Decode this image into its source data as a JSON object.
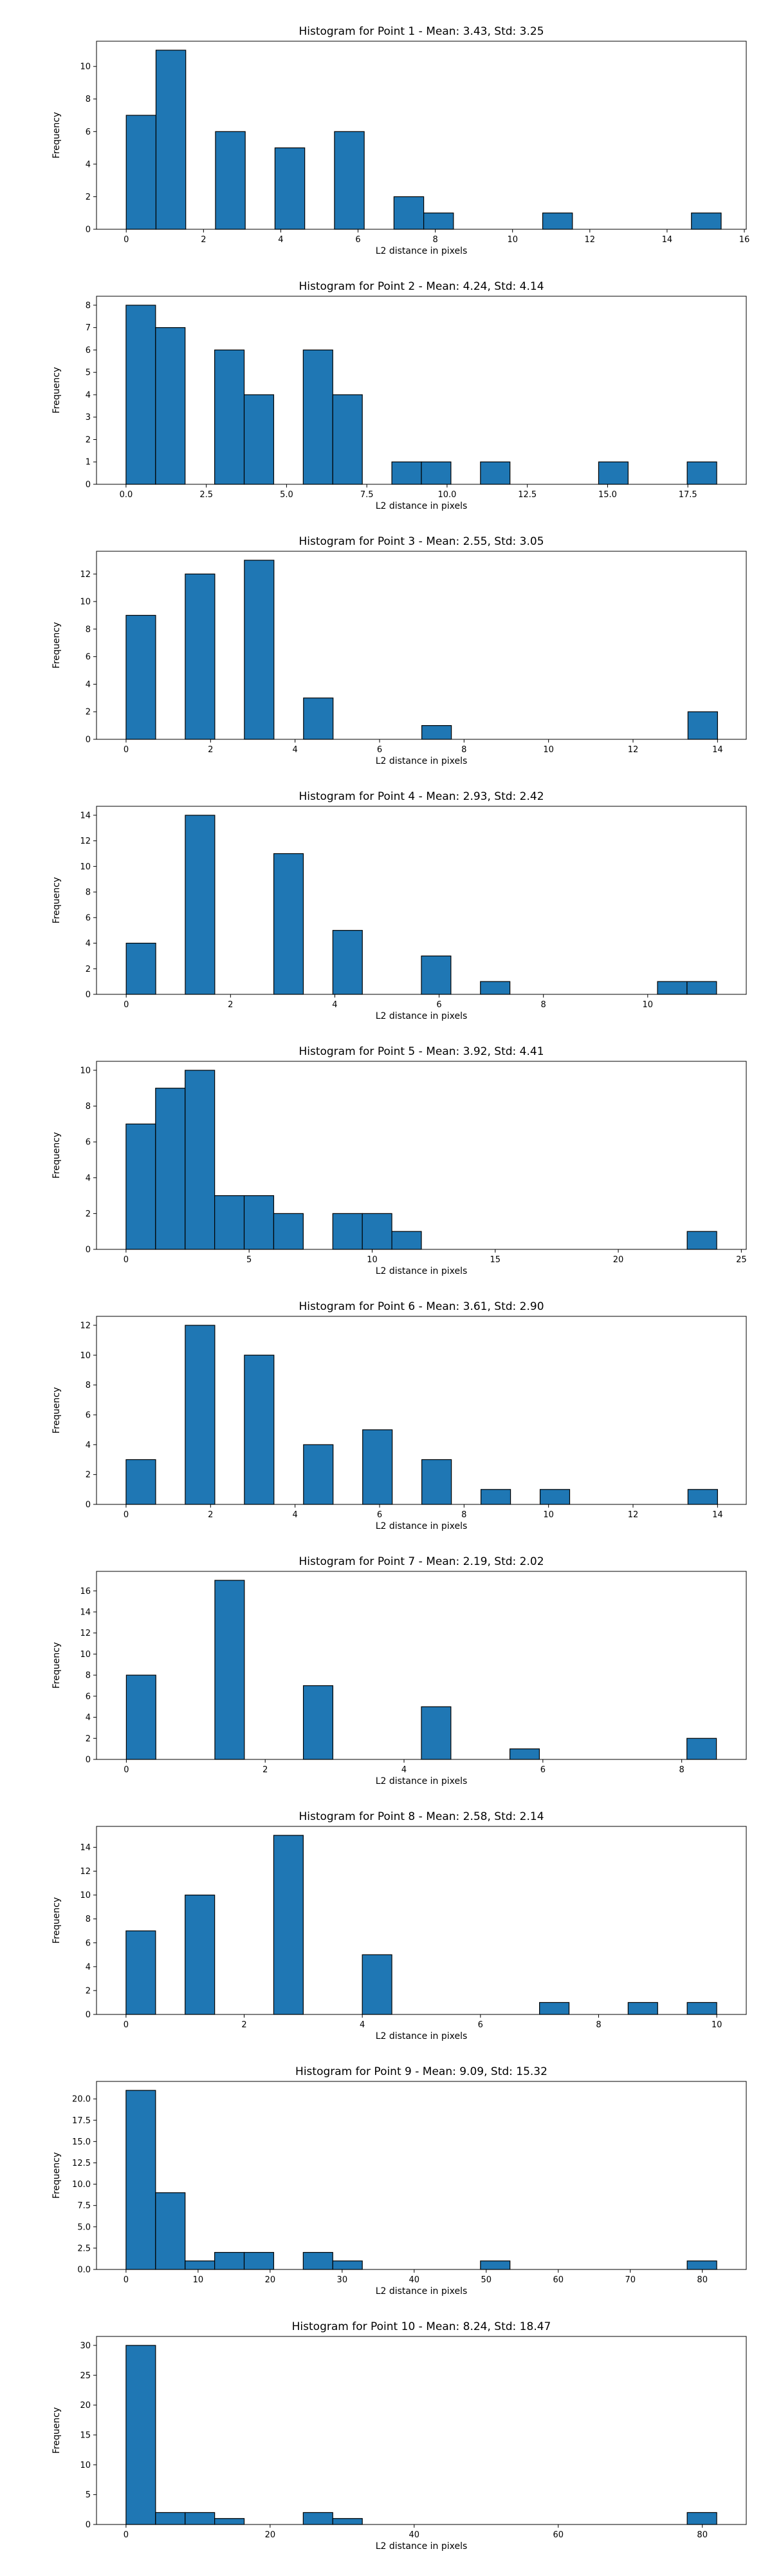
{
  "chart_data": [
    {
      "type": "bar",
      "title": "Histogram for Point 1 - Mean: 3.43, Std: 3.25",
      "xlabel": "L2 distance in pixels",
      "ylabel": "Frequency",
      "xlim": [
        -0.77,
        16.05
      ],
      "ylim": [
        0,
        11.55
      ],
      "xticks": [
        0,
        2,
        4,
        6,
        8,
        10,
        12,
        14,
        16
      ],
      "yticks": [
        0,
        2,
        4,
        6,
        8,
        10
      ],
      "bars": [
        {
          "x0": 0.0,
          "x1": 0.77,
          "y": 7
        },
        {
          "x0": 0.77,
          "x1": 1.54,
          "y": 11
        },
        {
          "x0": 2.31,
          "x1": 3.08,
          "y": 6
        },
        {
          "x0": 3.85,
          "x1": 4.62,
          "y": 5
        },
        {
          "x0": 5.39,
          "x1": 6.16,
          "y": 6
        },
        {
          "x0": 6.93,
          "x1": 7.7,
          "y": 2
        },
        {
          "x0": 7.7,
          "x1": 8.47,
          "y": 1
        },
        {
          "x0": 10.78,
          "x1": 11.55,
          "y": 1
        },
        {
          "x0": 14.63,
          "x1": 15.4,
          "y": 1
        }
      ]
    },
    {
      "type": "bar",
      "title": "Histogram for Point 2 - Mean: 4.24, Std: 4.14",
      "xlabel": "L2 distance in pixels",
      "ylabel": "Frequency",
      "xlim": [
        -0.92,
        19.32
      ],
      "ylim": [
        0,
        8.4
      ],
      "xticks": [
        0.0,
        2.5,
        5.0,
        7.5,
        10.0,
        12.5,
        15.0,
        17.5
      ],
      "xtick_labels": [
        "0.0",
        "2.5",
        "5.0",
        "7.5",
        "10.0",
        "12.5",
        "15.0",
        "17.5"
      ],
      "yticks": [
        0,
        1,
        2,
        3,
        4,
        5,
        6,
        7,
        8
      ],
      "bars": [
        {
          "x0": 0.0,
          "x1": 0.92,
          "y": 8
        },
        {
          "x0": 0.92,
          "x1": 1.84,
          "y": 7
        },
        {
          "x0": 2.76,
          "x1": 3.68,
          "y": 6
        },
        {
          "x0": 3.68,
          "x1": 4.6,
          "y": 4
        },
        {
          "x0": 5.52,
          "x1": 6.44,
          "y": 6
        },
        {
          "x0": 6.44,
          "x1": 7.36,
          "y": 4
        },
        {
          "x0": 8.28,
          "x1": 9.2,
          "y": 1
        },
        {
          "x0": 9.2,
          "x1": 10.12,
          "y": 1
        },
        {
          "x0": 11.04,
          "x1": 11.96,
          "y": 1
        },
        {
          "x0": 14.72,
          "x1": 15.64,
          "y": 1
        },
        {
          "x0": 17.48,
          "x1": 18.4,
          "y": 1
        }
      ]
    },
    {
      "type": "bar",
      "title": "Histogram for Point 3 - Mean: 2.55, Std: 3.05",
      "xlabel": "L2 distance in pixels",
      "ylabel": "Frequency",
      "xlim": [
        -0.7,
        14.68
      ],
      "ylim": [
        0,
        13.65
      ],
      "xticks": [
        0,
        2,
        4,
        6,
        8,
        10,
        12,
        14
      ],
      "yticks": [
        0,
        2,
        4,
        6,
        8,
        10,
        12
      ],
      "bars": [
        {
          "x0": 0.0,
          "x1": 0.7,
          "y": 9
        },
        {
          "x0": 1.4,
          "x1": 2.1,
          "y": 12
        },
        {
          "x0": 2.8,
          "x1": 3.5,
          "y": 13
        },
        {
          "x0": 4.2,
          "x1": 4.9,
          "y": 3
        },
        {
          "x0": 7.0,
          "x1": 7.7,
          "y": 1
        },
        {
          "x0": 13.3,
          "x1": 14.0,
          "y": 2
        }
      ]
    },
    {
      "type": "bar",
      "title": "Histogram for Point 4 - Mean: 2.93, Std: 2.42",
      "xlabel": "L2 distance in pixels",
      "ylabel": "Frequency",
      "xlim": [
        -0.57,
        11.89
      ],
      "ylim": [
        0,
        14.7
      ],
      "xticks": [
        0,
        2,
        4,
        6,
        8,
        10
      ],
      "yticks": [
        0,
        2,
        4,
        6,
        8,
        10,
        12,
        14
      ],
      "bars": [
        {
          "x0": 0.0,
          "x1": 0.566,
          "y": 4
        },
        {
          "x0": 1.132,
          "x1": 1.698,
          "y": 14
        },
        {
          "x0": 2.83,
          "x1": 3.396,
          "y": 11
        },
        {
          "x0": 3.962,
          "x1": 4.528,
          "y": 5
        },
        {
          "x0": 5.66,
          "x1": 6.226,
          "y": 3
        },
        {
          "x0": 6.792,
          "x1": 7.358,
          "y": 1
        },
        {
          "x0": 10.188,
          "x1": 10.754,
          "y": 1
        },
        {
          "x0": 10.754,
          "x1": 11.32,
          "y": 1
        }
      ]
    },
    {
      "type": "bar",
      "title": "Histogram for Point 5 - Mean: 3.92, Std: 4.41",
      "xlabel": "L2 distance in pixels",
      "ylabel": "Frequency",
      "xlim": [
        -1.2,
        25.2
      ],
      "ylim": [
        0,
        10.5
      ],
      "xticks": [
        0,
        5,
        10,
        15,
        20,
        25
      ],
      "yticks": [
        0,
        2,
        4,
        6,
        8,
        10
      ],
      "bars": [
        {
          "x0": 0.0,
          "x1": 1.2,
          "y": 7
        },
        {
          "x0": 1.2,
          "x1": 2.4,
          "y": 9
        },
        {
          "x0": 2.4,
          "x1": 3.6,
          "y": 10
        },
        {
          "x0": 3.6,
          "x1": 4.8,
          "y": 3
        },
        {
          "x0": 4.8,
          "x1": 6.0,
          "y": 3
        },
        {
          "x0": 6.0,
          "x1": 7.2,
          "y": 2
        },
        {
          "x0": 8.4,
          "x1": 9.6,
          "y": 2
        },
        {
          "x0": 9.6,
          "x1": 10.8,
          "y": 2
        },
        {
          "x0": 10.8,
          "x1": 12.0,
          "y": 1
        },
        {
          "x0": 22.8,
          "x1": 24.0,
          "y": 1
        }
      ]
    },
    {
      "type": "bar",
      "title": "Histogram for Point 6 - Mean: 3.61, Std: 2.90",
      "xlabel": "L2 distance in pixels",
      "ylabel": "Frequency",
      "xlim": [
        -0.7,
        14.68
      ],
      "ylim": [
        0,
        12.6
      ],
      "xticks": [
        0,
        2,
        4,
        6,
        8,
        10,
        12,
        14
      ],
      "yticks": [
        0,
        2,
        4,
        6,
        8,
        10,
        12
      ],
      "bars": [
        {
          "x0": 0.0,
          "x1": 0.7,
          "y": 3
        },
        {
          "x0": 1.4,
          "x1": 2.1,
          "y": 12
        },
        {
          "x0": 2.8,
          "x1": 3.5,
          "y": 10
        },
        {
          "x0": 4.2,
          "x1": 4.9,
          "y": 4
        },
        {
          "x0": 5.6,
          "x1": 6.3,
          "y": 5
        },
        {
          "x0": 7.0,
          "x1": 7.7,
          "y": 3
        },
        {
          "x0": 8.4,
          "x1": 9.1,
          "y": 1
        },
        {
          "x0": 9.8,
          "x1": 10.5,
          "y": 1
        },
        {
          "x0": 13.3,
          "x1": 14.0,
          "y": 1
        }
      ]
    },
    {
      "type": "bar",
      "title": "Histogram for Point 7 - Mean: 2.19, Std: 2.02",
      "xlabel": "L2 distance in pixels",
      "ylabel": "Frequency",
      "xlim": [
        -0.43,
        8.93
      ],
      "ylim": [
        0,
        17.85
      ],
      "xticks": [
        0,
        2,
        4,
        6,
        8
      ],
      "yticks": [
        0,
        2,
        4,
        6,
        8,
        10,
        12,
        14,
        16
      ],
      "bars": [
        {
          "x0": 0.0,
          "x1": 0.425,
          "y": 8
        },
        {
          "x0": 1.275,
          "x1": 1.7,
          "y": 17
        },
        {
          "x0": 2.55,
          "x1": 2.975,
          "y": 7
        },
        {
          "x0": 4.25,
          "x1": 4.675,
          "y": 5
        },
        {
          "x0": 5.525,
          "x1": 5.95,
          "y": 1
        },
        {
          "x0": 8.075,
          "x1": 8.5,
          "y": 2
        }
      ]
    },
    {
      "type": "bar",
      "title": "Histogram for Point 8 - Mean: 2.58, Std: 2.14",
      "xlabel": "L2 distance in pixels",
      "ylabel": "Frequency",
      "xlim": [
        -0.5,
        10.5
      ],
      "ylim": [
        0,
        15.75
      ],
      "xticks": [
        0,
        2,
        4,
        6,
        8,
        10
      ],
      "yticks": [
        0,
        2,
        4,
        6,
        8,
        10,
        12,
        14
      ],
      "bars": [
        {
          "x0": 0.0,
          "x1": 0.5,
          "y": 7
        },
        {
          "x0": 1.0,
          "x1": 1.5,
          "y": 10
        },
        {
          "x0": 2.5,
          "x1": 3.0,
          "y": 15
        },
        {
          "x0": 4.0,
          "x1": 4.5,
          "y": 5
        },
        {
          "x0": 7.0,
          "x1": 7.5,
          "y": 1
        },
        {
          "x0": 8.5,
          "x1": 9.0,
          "y": 1
        },
        {
          "x0": 9.5,
          "x1": 10.0,
          "y": 1
        }
      ]
    },
    {
      "type": "bar",
      "title": "Histogram for Point 9 - Mean: 9.09, Std: 15.32",
      "xlabel": "L2 distance in pixels",
      "ylabel": "Frequency",
      "xlim": [
        -4.1,
        86.1
      ],
      "ylim": [
        0,
        22.05
      ],
      "xticks": [
        0,
        10,
        20,
        30,
        40,
        50,
        60,
        70,
        80
      ],
      "yticks": [
        0.0,
        2.5,
        5.0,
        7.5,
        10.0,
        12.5,
        15.0,
        17.5,
        20.0
      ],
      "ytick_labels": [
        "0.0",
        "2.5",
        "5.0",
        "7.5",
        "10.0",
        "12.5",
        "15.0",
        "17.5",
        "20.0"
      ],
      "bars": [
        {
          "x0": 0.0,
          "x1": 4.1,
          "y": 21
        },
        {
          "x0": 4.1,
          "x1": 8.2,
          "y": 9
        },
        {
          "x0": 8.2,
          "x1": 12.3,
          "y": 1
        },
        {
          "x0": 12.3,
          "x1": 16.4,
          "y": 2
        },
        {
          "x0": 16.4,
          "x1": 20.5,
          "y": 2
        },
        {
          "x0": 24.6,
          "x1": 28.7,
          "y": 2
        },
        {
          "x0": 28.7,
          "x1": 32.8,
          "y": 1
        },
        {
          "x0": 49.2,
          "x1": 53.3,
          "y": 1
        },
        {
          "x0": 77.9,
          "x1": 82.0,
          "y": 1
        }
      ]
    },
    {
      "type": "bar",
      "title": "Histogram for Point 10 - Mean: 8.24, Std: 18.47",
      "xlabel": "L2 distance in pixels",
      "ylabel": "Frequency",
      "xlim": [
        -4.1,
        86.1
      ],
      "ylim": [
        0,
        31.5
      ],
      "xticks": [
        0,
        20,
        40,
        60,
        80
      ],
      "yticks": [
        0,
        5,
        10,
        15,
        20,
        25,
        30
      ],
      "bars": [
        {
          "x0": 0.0,
          "x1": 4.1,
          "y": 30
        },
        {
          "x0": 4.1,
          "x1": 8.2,
          "y": 2
        },
        {
          "x0": 8.2,
          "x1": 12.3,
          "y": 2
        },
        {
          "x0": 12.3,
          "x1": 16.4,
          "y": 1
        },
        {
          "x0": 24.6,
          "x1": 28.7,
          "y": 2
        },
        {
          "x0": 28.7,
          "x1": 32.8,
          "y": 1
        },
        {
          "x0": 77.9,
          "x1": 82.0,
          "y": 2
        }
      ]
    }
  ],
  "style": {
    "bar_color": "#1f77b4",
    "edge_color": "#000000",
    "axis_color": "#000000",
    "background": "#ffffff"
  }
}
